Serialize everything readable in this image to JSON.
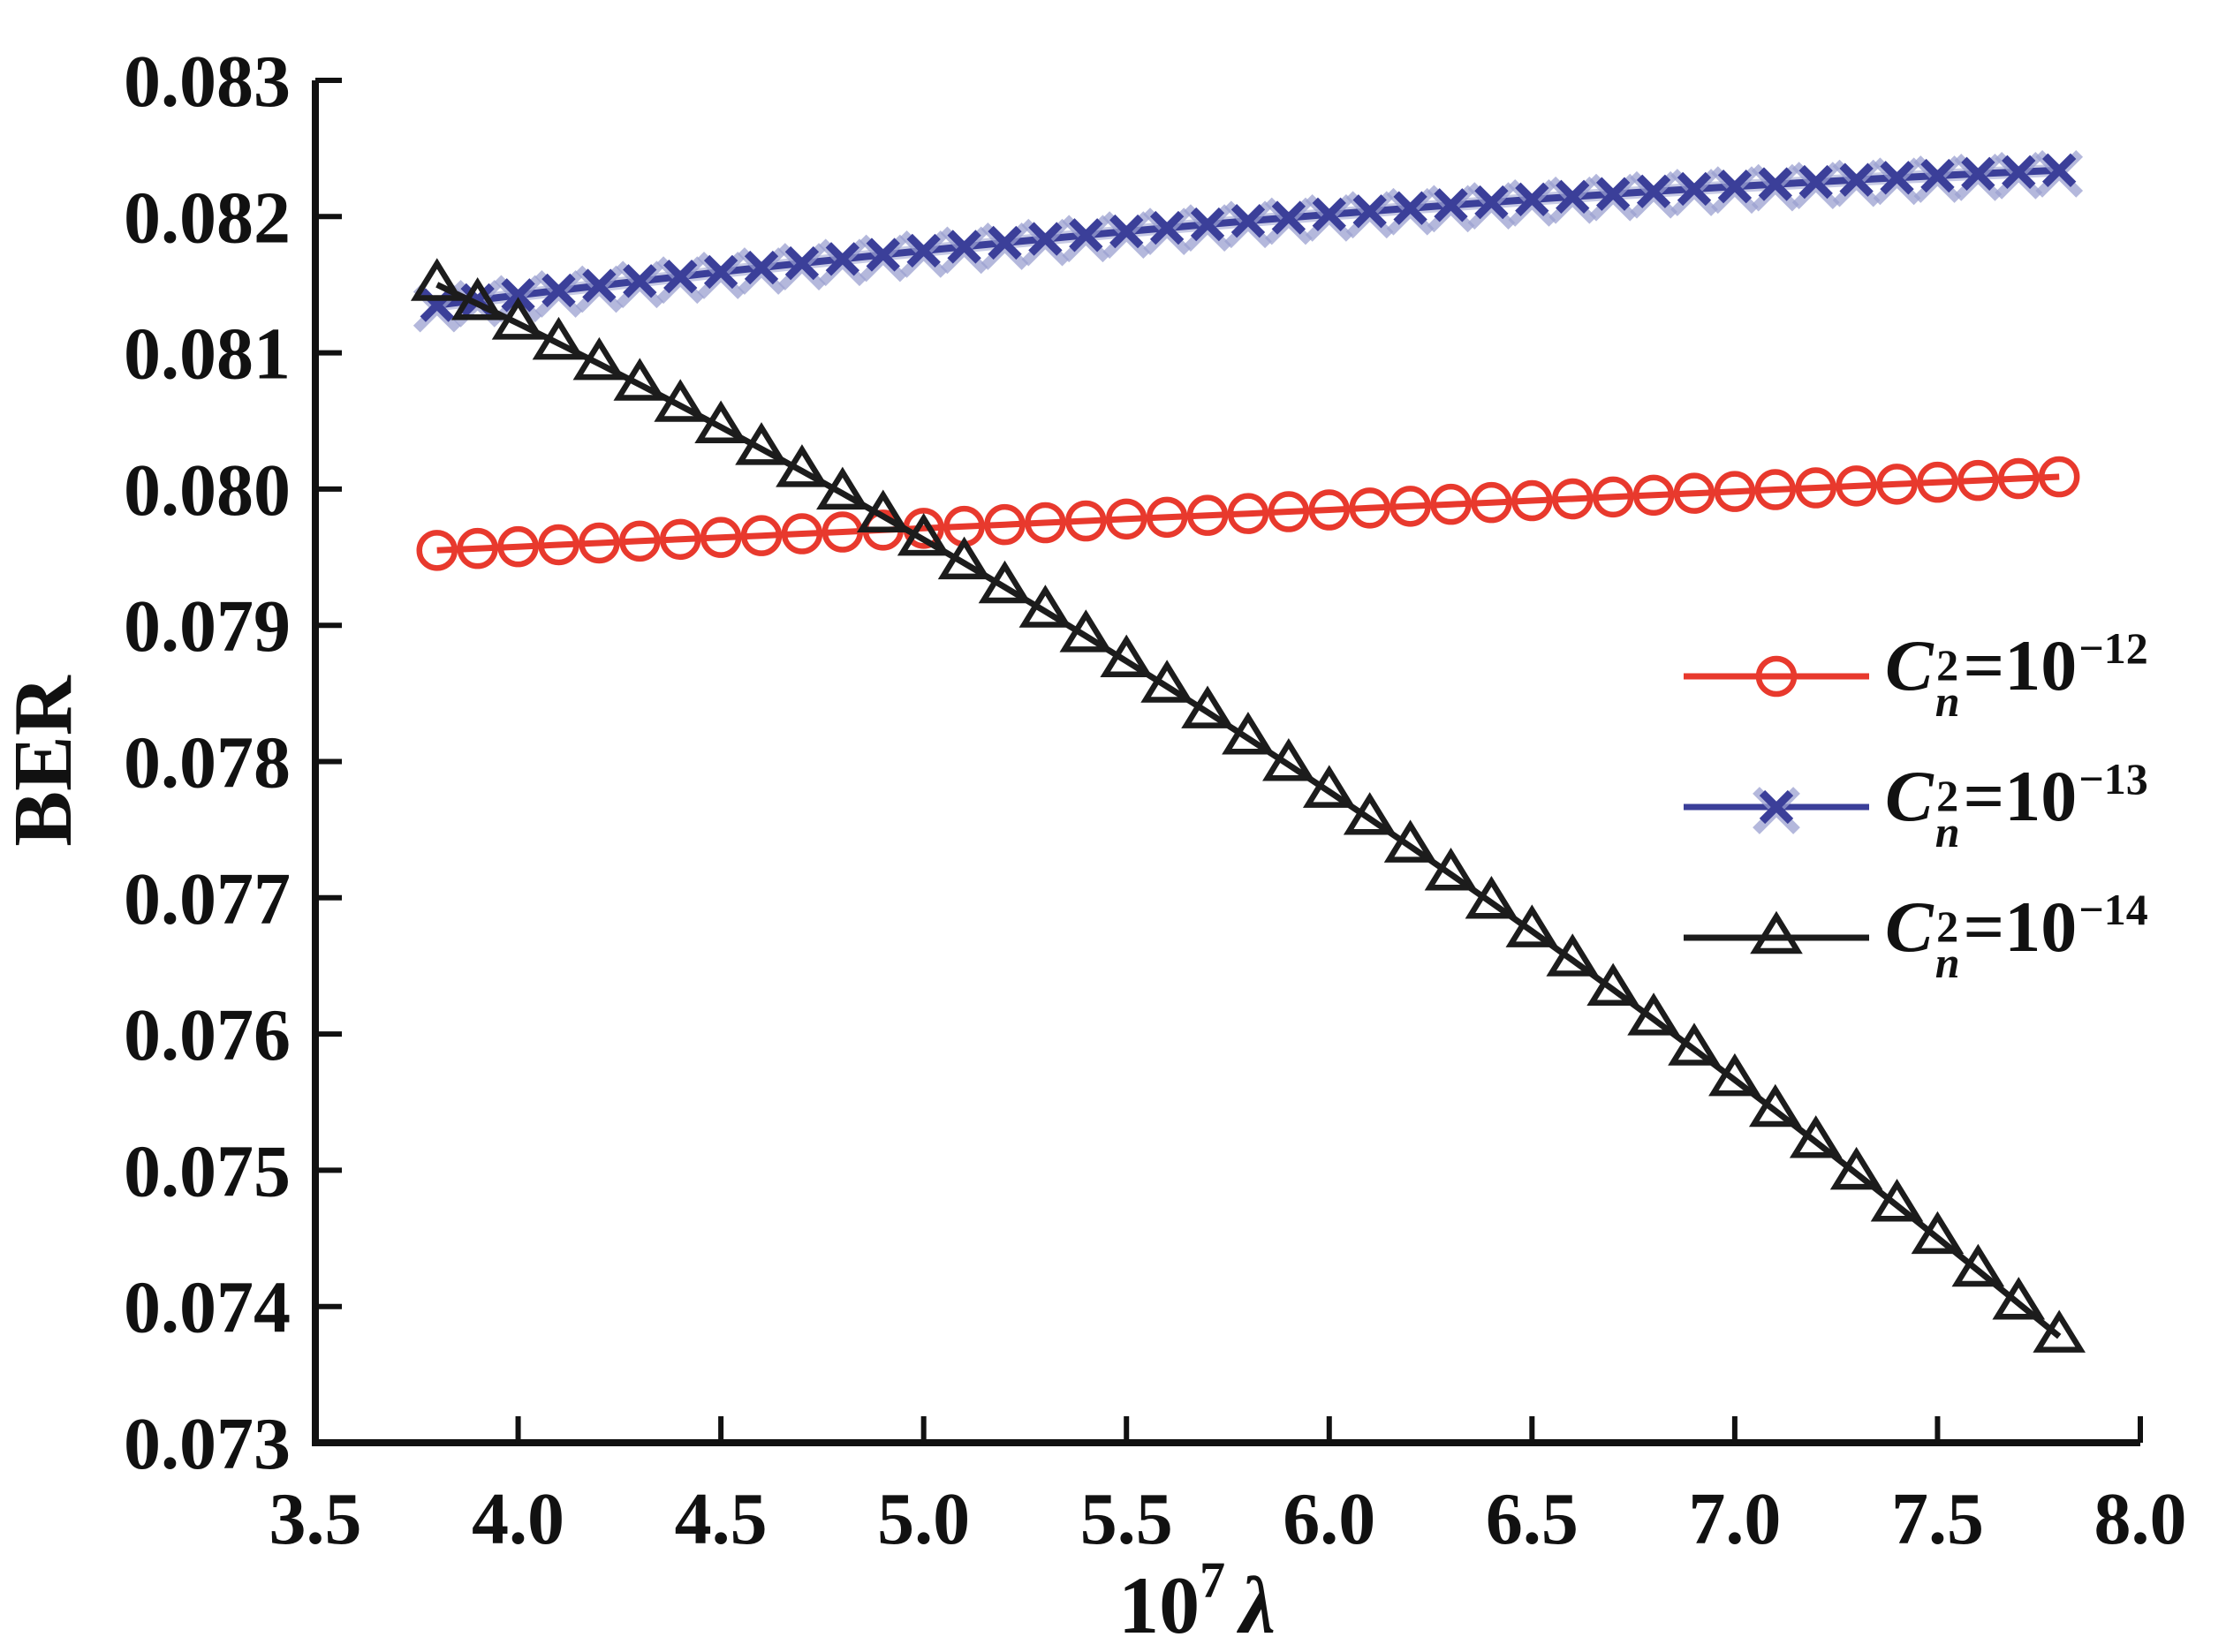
{
  "chart_data": {
    "type": "line",
    "title": "",
    "ylabel": "BER",
    "xlabel_parts": {
      "base": "10",
      "sup": "7",
      "symbol": "λ"
    },
    "xlim": [
      3.5,
      8.0
    ],
    "ylim": [
      0.073,
      0.083
    ],
    "xticks": [
      "3.5",
      "4.0",
      "4.5",
      "5.0",
      "5.5",
      "6.0",
      "6.5",
      "7.0",
      "7.5",
      "8.0"
    ],
    "yticks": [
      "0.073",
      "0.074",
      "0.075",
      "0.076",
      "0.077",
      "0.078",
      "0.079",
      "0.080",
      "0.081",
      "0.082",
      "0.083"
    ],
    "grid": false,
    "legend_position": "middle-right",
    "axis_color": "#111111",
    "x": [
      3.8,
      3.9,
      4.0,
      4.1,
      4.2,
      4.3,
      4.4,
      4.5,
      4.6,
      4.7,
      4.8,
      4.9,
      5.0,
      5.1,
      5.2,
      5.3,
      5.4,
      5.5,
      5.6,
      5.7,
      5.8,
      5.9,
      6.0,
      6.1,
      6.2,
      6.3,
      6.4,
      6.5,
      6.6,
      6.7,
      6.8,
      6.9,
      7.0,
      7.1,
      7.2,
      7.3,
      7.4,
      7.5,
      7.6,
      7.7,
      7.8
    ],
    "series": [
      {
        "name": "Cn^2=10^-12",
        "legend": {
          "base": "C",
          "sup": "2",
          "sub": "n",
          "rhs": "=10",
          "exp": "−12"
        },
        "color": "#e8392d",
        "marker": "circle",
        "y": [
          0.07955,
          0.079564,
          0.079577,
          0.079591,
          0.079604,
          0.079618,
          0.079631,
          0.079645,
          0.079658,
          0.079672,
          0.079685,
          0.079699,
          0.079712,
          0.079726,
          0.079739,
          0.079753,
          0.079766,
          0.07978,
          0.079793,
          0.079807,
          0.07982,
          0.079834,
          0.079847,
          0.079861,
          0.079874,
          0.079888,
          0.079901,
          0.079915,
          0.079928,
          0.079942,
          0.079955,
          0.079969,
          0.079982,
          0.079996,
          0.080009,
          0.080023,
          0.080036,
          0.08005,
          0.080063,
          0.080077,
          0.08009
        ]
      },
      {
        "name": "Cn^2=10^-13",
        "legend": {
          "base": "C",
          "sup": "2",
          "sub": "n",
          "rhs": "=10",
          "exp": "−13"
        },
        "color": "#3b3f99",
        "halo": "#9ba0d0",
        "marker": "x",
        "y": [
          0.08135,
          0.081387,
          0.081423,
          0.081458,
          0.081493,
          0.081527,
          0.08156,
          0.081594,
          0.081626,
          0.081658,
          0.081689,
          0.08172,
          0.08175,
          0.081779,
          0.081808,
          0.081836,
          0.081864,
          0.081891,
          0.081917,
          0.081943,
          0.081968,
          0.081992,
          0.082016,
          0.082039,
          0.082062,
          0.082084,
          0.082105,
          0.082126,
          0.082146,
          0.082166,
          0.082185,
          0.082203,
          0.082221,
          0.082238,
          0.082254,
          0.08227,
          0.082285,
          0.0823,
          0.082314,
          0.082327,
          0.08234
        ]
      },
      {
        "name": "Cn^2=10^-14",
        "legend": {
          "base": "C",
          "sup": "2",
          "sub": "n",
          "rhs": "=10",
          "exp": "−14"
        },
        "color": "#1c1c1c",
        "marker": "triangle",
        "y": [
          0.0815,
          0.081359,
          0.081215,
          0.081068,
          0.080919,
          0.080767,
          0.080612,
          0.080455,
          0.080295,
          0.080133,
          0.079968,
          0.0798,
          0.079629,
          0.079456,
          0.07928,
          0.079102,
          0.078921,
          0.078737,
          0.078551,
          0.078362,
          0.07817,
          0.077976,
          0.077779,
          0.07758,
          0.077377,
          0.077172,
          0.076965,
          0.076755,
          0.076542,
          0.076326,
          0.076108,
          0.075887,
          0.075663,
          0.075437,
          0.075208,
          0.074976,
          0.074742,
          0.074504,
          0.074264,
          0.074022,
          0.07378
        ]
      }
    ]
  }
}
